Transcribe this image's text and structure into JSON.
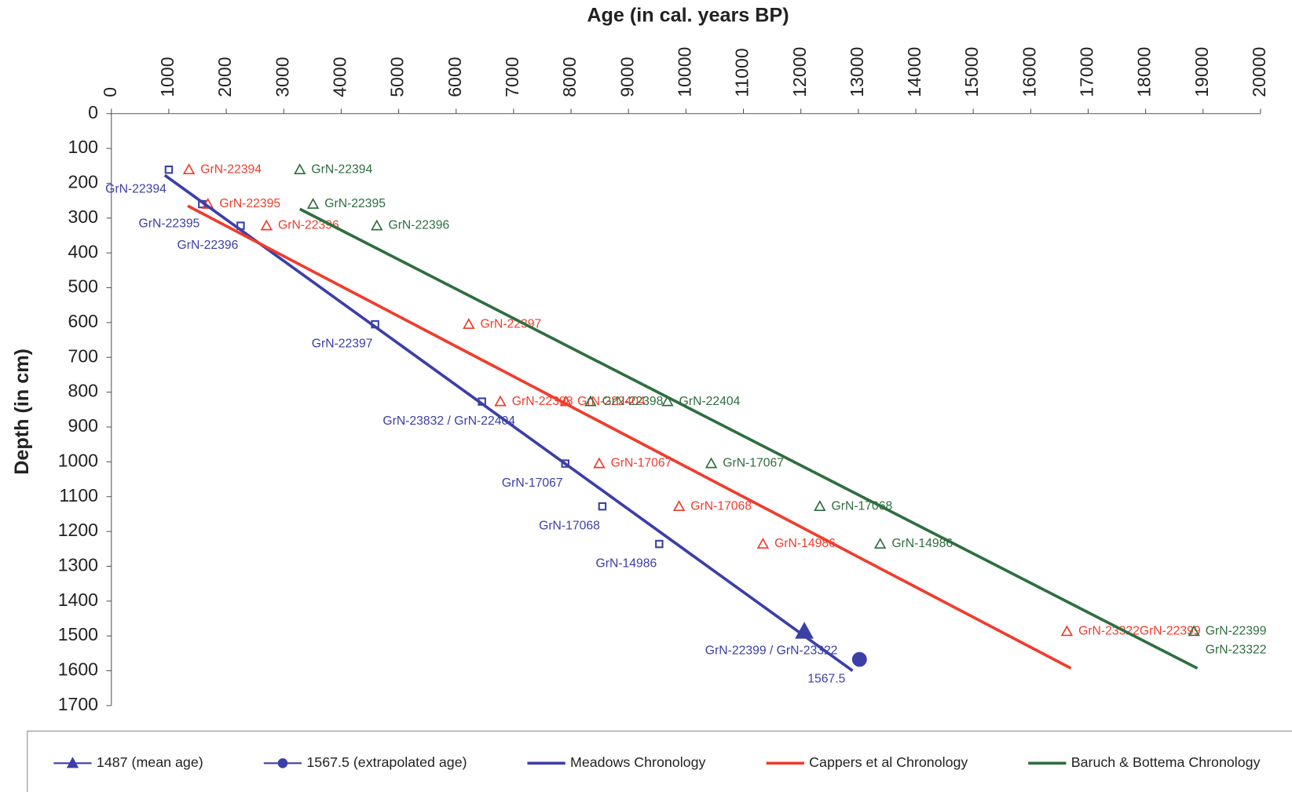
{
  "chart_data": {
    "type": "scatter",
    "xlabel": "Age (in cal. years BP)",
    "ylabel": "Depth (in cm)",
    "x_axis_position": "top",
    "y_inverted": true,
    "xlim": [
      0,
      20000
    ],
    "xticks": [
      0,
      1000,
      2000,
      3000,
      4000,
      5000,
      6000,
      7000,
      8000,
      9000,
      10000,
      11000,
      12000,
      13000,
      14000,
      15000,
      16000,
      17000,
      18000,
      19000,
      20000
    ],
    "ylim": [
      0,
      1700
    ],
    "yticks": [
      0,
      100,
      200,
      300,
      400,
      500,
      600,
      700,
      800,
      900,
      1000,
      1100,
      1200,
      1300,
      1400,
      1500,
      1600,
      1700
    ],
    "legend": "bottom",
    "series": [
      {
        "mode": "markers",
        "marker": "square",
        "color": "#3b3fa8",
        "x": [
          1000,
          1580,
          2250,
          4590,
          6450,
          7900,
          8545,
          9535
        ],
        "values": [
          161,
          260,
          322,
          605,
          827,
          1005,
          1128,
          1236
        ],
        "labels": [
          "GrN-22394",
          "GrN-22395",
          "GrN-22396",
          "GrN-22397",
          "GrN-23832 / GrN-22404",
          "GrN-17067",
          "GrN-17068",
          "GrN-14986"
        ]
      },
      {
        "mode": "markers",
        "marker": "triangle-open",
        "color": "#f03c2c",
        "x": [
          1350,
          1680,
          2700,
          6220,
          6770,
          7910,
          8490,
          9880,
          11340,
          16630
        ],
        "values": [
          161,
          260,
          322,
          605,
          827,
          827,
          1005,
          1128,
          1236,
          1487
        ],
        "labels": [
          "GrN-22394",
          "GrN-22395",
          "GrN-22396",
          "GrN-22397",
          "GrN-22398",
          "GrN-222404",
          "GrN-17067",
          "GrN-17068",
          "GrN-14986",
          "GrN-23322GrN-22399"
        ]
      },
      {
        "mode": "markers",
        "marker": "triangle-open",
        "color": "#2f6e3f",
        "x": [
          3280,
          3510,
          4620,
          8340,
          9680,
          10440,
          12330,
          13380,
          18840
        ],
        "values": [
          161,
          260,
          322,
          827,
          827,
          1005,
          1128,
          1236,
          1487
        ],
        "labels": [
          "GrN-22394",
          "GrN-22395",
          "GrN-22396",
          "GrN-22398",
          "GrN-22404",
          "GrN-17067",
          "GrN-17068",
          "GrN-14986",
          [
            "GrN-22399",
            "GrN-23322"
          ]
        ]
      },
      {
        "name": "1487 (mean age)",
        "mode": "markers",
        "marker": "triangle",
        "color": "#3b3fa8",
        "x": [
          12060
        ],
        "values": [
          1487
        ],
        "labels": [
          "GrN-22399 / GrN-23322"
        ]
      },
      {
        "name": "1567.5 (extrapolated age)",
        "mode": "markers",
        "marker": "circle",
        "color": "#3b3fa8",
        "x": [
          13020
        ],
        "values": [
          1567.5
        ],
        "labels": [
          "1567.5"
        ]
      },
      {
        "name": "Meadows Chronology",
        "mode": "line",
        "color": "#3b3fa8",
        "x": [
          930,
          12900
        ],
        "values": [
          177,
          1600
        ]
      },
      {
        "name": "Cappers et al Chronology",
        "mode": "line",
        "color": "#f03c2c",
        "x": [
          1330,
          16700
        ],
        "values": [
          265,
          1593
        ]
      },
      {
        "name": "Baruch & Bottema Chronology",
        "mode": "line",
        "color": "#2f6e3f",
        "x": [
          3280,
          18900
        ],
        "values": [
          274,
          1593
        ]
      }
    ]
  }
}
